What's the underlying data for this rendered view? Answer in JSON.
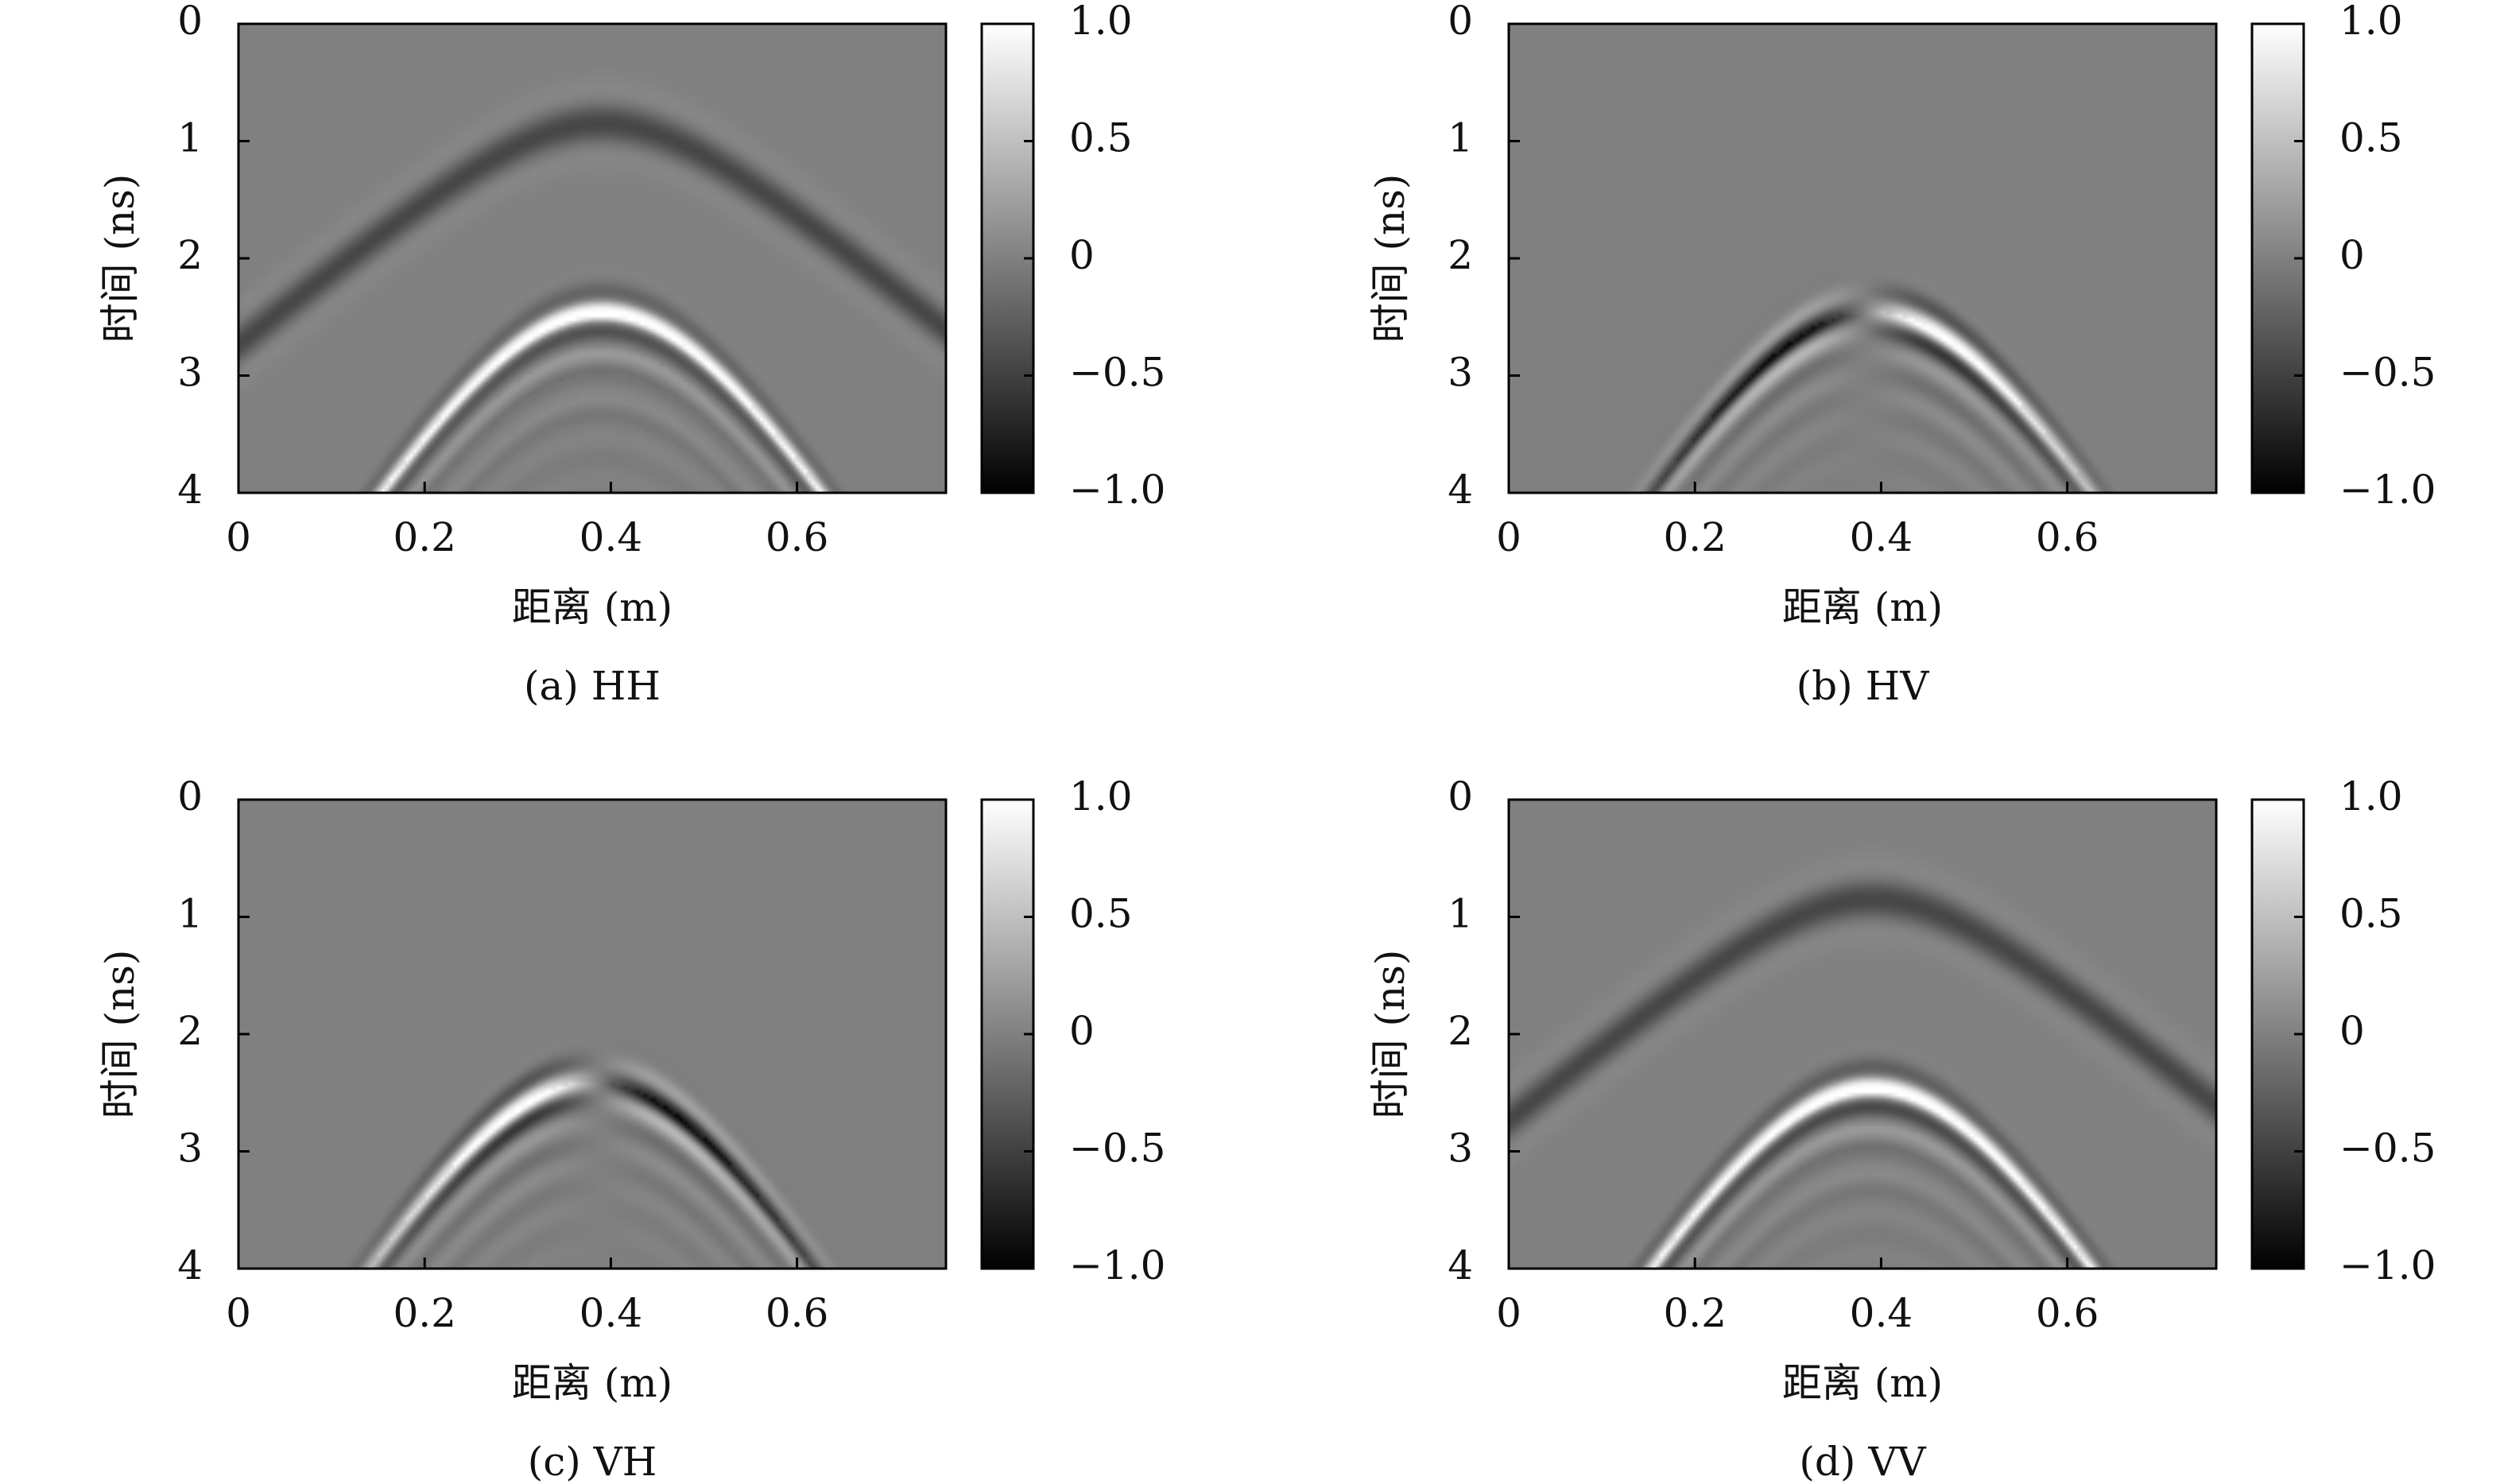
{
  "figure": {
    "xlabel": "距离 (m)",
    "ylabel": "时间 (ns)",
    "colorbar_ticks": [
      "1.0",
      "0.5",
      "0",
      "−0.5",
      "−1.0"
    ],
    "x_ticks": [
      "0",
      "0.2",
      "0.4",
      "0.6"
    ],
    "y_ticks": [
      "0",
      "1",
      "2",
      "3",
      "4"
    ]
  },
  "chart_data": [
    {
      "type": "heatmap",
      "caption": "(a) HH",
      "xlabel": "距离 (m)",
      "ylabel": "时间 (ns)",
      "xlim": [
        0,
        0.76
      ],
      "ylim": [
        0,
        4
      ],
      "clim": [
        -1.0,
        1.0
      ],
      "colormap": "gray",
      "x_ticks": [
        0,
        0.2,
        0.4,
        0.6
      ],
      "y_ticks": [
        0,
        1,
        2,
        3,
        4
      ],
      "colorbar_ticks": [
        1.0,
        0.5,
        0,
        -0.5,
        -1.0
      ],
      "hyperbola": {
        "apex_x": 0.39,
        "apex_t": 2.45,
        "velocity_m_per_ns": 0.15,
        "mode": "symmetric",
        "bright": 1.0,
        "dark": -0.6,
        "early_arc": true
      }
    },
    {
      "type": "heatmap",
      "caption": "(b) HV",
      "xlabel": "距离 (m)",
      "ylabel": "时间 (ns)",
      "xlim": [
        0,
        0.76
      ],
      "ylim": [
        0,
        4
      ],
      "clim": [
        -1.0,
        1.0
      ],
      "colormap": "gray",
      "x_ticks": [
        0,
        0.2,
        0.4,
        0.6
      ],
      "y_ticks": [
        0,
        1,
        2,
        3,
        4
      ],
      "colorbar_ticks": [
        1.0,
        0.5,
        0,
        -0.5,
        -1.0
      ],
      "hyperbola": {
        "apex_x": 0.39,
        "apex_t": 2.45,
        "velocity_m_per_ns": 0.15,
        "mode": "antisymmetric",
        "bright": 0.9,
        "dark": -1.0,
        "early_arc": false
      }
    },
    {
      "type": "heatmap",
      "caption": "(c) VH",
      "xlabel": "距离 (m)",
      "ylabel": "时间 (ns)",
      "xlim": [
        0,
        0.76
      ],
      "ylim": [
        0,
        4
      ],
      "clim": [
        -1.0,
        1.0
      ],
      "colormap": "gray",
      "x_ticks": [
        0,
        0.2,
        0.4,
        0.6
      ],
      "y_ticks": [
        0,
        1,
        2,
        3,
        4
      ],
      "colorbar_ticks": [
        1.0,
        0.5,
        0,
        -0.5,
        -1.0
      ],
      "hyperbola": {
        "apex_x": 0.38,
        "apex_t": 2.4,
        "velocity_m_per_ns": 0.15,
        "mode": "antisymmetric-left",
        "bright": 0.9,
        "dark": -1.0,
        "early_arc": false
      }
    },
    {
      "type": "heatmap",
      "caption": "(d) VV",
      "xlabel": "距离 (m)",
      "ylabel": "时间 (ns)",
      "xlim": [
        0,
        0.76
      ],
      "ylim": [
        0,
        4
      ],
      "clim": [
        -1.0,
        1.0
      ],
      "colormap": "gray",
      "x_ticks": [
        0,
        0.2,
        0.4,
        0.6
      ],
      "y_ticks": [
        0,
        1,
        2,
        3,
        4
      ],
      "colorbar_ticks": [
        1.0,
        0.5,
        0,
        -0.5,
        -1.0
      ],
      "hyperbola": {
        "apex_x": 0.39,
        "apex_t": 2.45,
        "velocity_m_per_ns": 0.15,
        "mode": "symmetric",
        "bright": 1.0,
        "dark": -0.7,
        "early_arc": true
      }
    }
  ]
}
